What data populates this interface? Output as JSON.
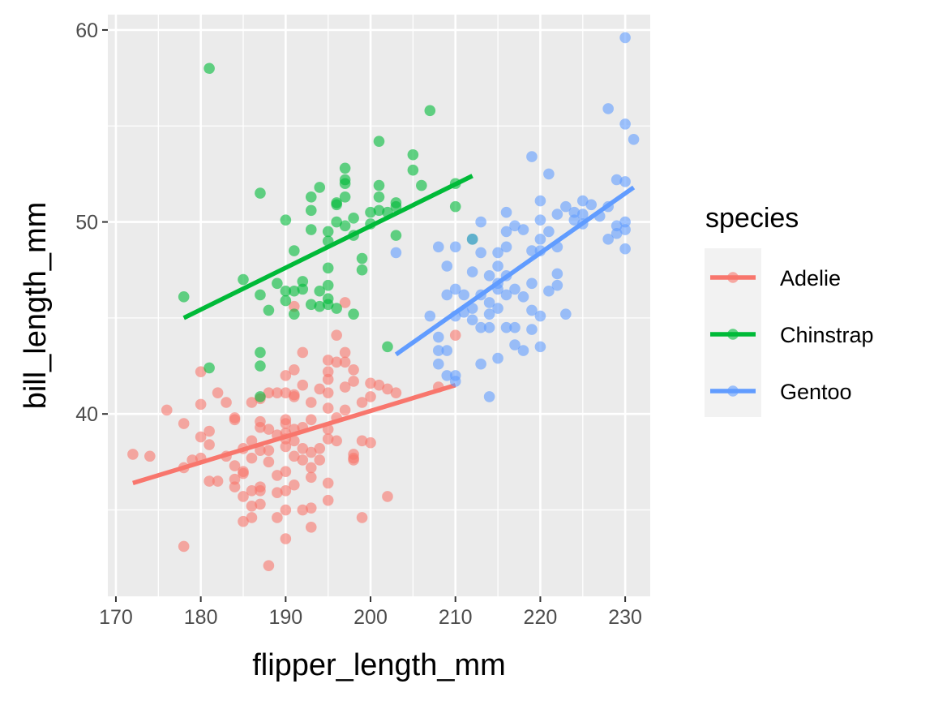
{
  "chart_data": {
    "type": "scatter",
    "xlabel": "flipper_length_mm",
    "ylabel": "bill_length_mm",
    "xlim": [
      169.05,
      232.95
    ],
    "ylim": [
      30.5,
      60.8
    ],
    "x_ticks": [
      170,
      180,
      190,
      200,
      210,
      220,
      230
    ],
    "y_ticks": [
      40,
      50,
      60
    ],
    "legend_title": "species",
    "legend_position": "right",
    "grid": true,
    "series": [
      {
        "name": "Adelie",
        "color": "#F8766D",
        "trend": {
          "x": [
            172,
            210
          ],
          "y": [
            36.4,
            41.5
          ]
        },
        "points": [
          [
            172,
            37.9
          ],
          [
            174,
            37.8
          ],
          [
            176,
            40.2
          ],
          [
            178,
            39.5
          ],
          [
            178,
            37.2
          ],
          [
            178,
            33.1
          ],
          [
            179,
            37.6
          ],
          [
            180,
            42.2
          ],
          [
            180,
            40.5
          ],
          [
            180,
            38.8
          ],
          [
            180,
            37.7
          ],
          [
            181,
            36.5
          ],
          [
            181,
            39.1
          ],
          [
            181,
            38.4
          ],
          [
            182,
            41.1
          ],
          [
            182,
            36.5
          ],
          [
            183,
            40.6
          ],
          [
            183,
            37.8
          ],
          [
            184,
            39.8
          ],
          [
            184,
            39.7
          ],
          [
            184,
            36.6
          ],
          [
            184,
            36.2
          ],
          [
            184,
            37.3
          ],
          [
            185,
            38.2
          ],
          [
            185,
            35.7
          ],
          [
            185,
            34.4
          ],
          [
            185,
            36.9
          ],
          [
            185,
            37.0
          ],
          [
            186,
            40.6
          ],
          [
            186,
            38.6
          ],
          [
            186,
            36.0
          ],
          [
            186,
            35.2
          ],
          [
            186,
            37.7
          ],
          [
            186,
            34.6
          ],
          [
            187,
            39.6
          ],
          [
            187,
            38.1
          ],
          [
            187,
            36.0
          ],
          [
            187,
            35.3
          ],
          [
            187,
            36.2
          ],
          [
            187,
            39.3
          ],
          [
            187,
            40.8
          ],
          [
            188,
            41.1
          ],
          [
            188,
            37.5
          ],
          [
            188,
            38.1
          ],
          [
            188,
            39.2
          ],
          [
            188,
            32.1
          ],
          [
            189,
            41.1
          ],
          [
            189,
            38.9
          ],
          [
            189,
            35.9
          ],
          [
            189,
            34.6
          ],
          [
            189,
            36.8
          ],
          [
            190,
            42.0
          ],
          [
            190,
            39.7
          ],
          [
            190,
            39.0
          ],
          [
            190,
            38.3
          ],
          [
            190,
            38.7
          ],
          [
            190,
            36.0
          ],
          [
            190,
            35.0
          ],
          [
            190,
            37.0
          ],
          [
            190,
            33.5
          ],
          [
            190,
            41.1
          ],
          [
            190,
            39.5
          ],
          [
            191,
            41.0
          ],
          [
            191,
            39.2
          ],
          [
            191,
            38.6
          ],
          [
            191,
            37.8
          ],
          [
            191,
            36.3
          ],
          [
            191,
            45.6
          ],
          [
            191,
            42.3
          ],
          [
            191,
            40.9
          ],
          [
            192,
            43.2
          ],
          [
            192,
            39.3
          ],
          [
            192,
            38.2
          ],
          [
            192,
            35.0
          ],
          [
            192,
            37.6
          ],
          [
            192,
            41.5
          ],
          [
            193,
            39.7
          ],
          [
            193,
            38.0
          ],
          [
            193,
            36.7
          ],
          [
            193,
            35.1
          ],
          [
            193,
            34.1
          ],
          [
            193,
            40.6
          ],
          [
            193,
            37.2
          ],
          [
            194,
            41.3
          ],
          [
            194,
            38.2
          ],
          [
            194,
            37.6
          ],
          [
            195,
            42.8
          ],
          [
            195,
            41.8
          ],
          [
            195,
            40.3
          ],
          [
            195,
            38.7
          ],
          [
            195,
            36.4
          ],
          [
            195,
            35.5
          ],
          [
            195,
            39.2
          ],
          [
            195,
            42.2
          ],
          [
            195,
            41.1
          ],
          [
            196,
            42.7
          ],
          [
            196,
            39.8
          ],
          [
            196,
            38.6
          ],
          [
            196,
            44.1
          ],
          [
            197,
            42.7
          ],
          [
            197,
            40.2
          ],
          [
            197,
            45.8
          ],
          [
            197,
            43.2
          ],
          [
            197,
            41.4
          ],
          [
            198,
            41.7
          ],
          [
            198,
            37.7
          ],
          [
            198,
            37.9
          ],
          [
            198,
            42.3
          ],
          [
            198,
            37.6
          ],
          [
            199,
            40.6
          ],
          [
            199,
            38.6
          ],
          [
            199,
            34.6
          ],
          [
            200,
            41.6
          ],
          [
            200,
            38.5
          ],
          [
            200,
            40.9
          ],
          [
            201,
            41.5
          ],
          [
            202,
            41.3
          ],
          [
            202,
            35.7
          ],
          [
            203,
            41.1
          ],
          [
            208,
            41.4
          ],
          [
            210,
            44.1
          ]
        ]
      },
      {
        "name": "Chinstrap",
        "color": "#00BA38",
        "trend": {
          "x": [
            178,
            212
          ],
          "y": [
            45.0,
            52.4
          ]
        },
        "points": [
          [
            178,
            46.1
          ],
          [
            181,
            58.0
          ],
          [
            181,
            42.4
          ],
          [
            185,
            47.0
          ],
          [
            187,
            51.5
          ],
          [
            187,
            46.2
          ],
          [
            187,
            43.2
          ],
          [
            187,
            42.5
          ],
          [
            187,
            40.9
          ],
          [
            188,
            45.4
          ],
          [
            189,
            46.8
          ],
          [
            190,
            50.1
          ],
          [
            190,
            46.4
          ],
          [
            190,
            45.9
          ],
          [
            191,
            48.5
          ],
          [
            191,
            46.4
          ],
          [
            191,
            45.2
          ],
          [
            192,
            46.9
          ],
          [
            192,
            46.5
          ],
          [
            193,
            51.3
          ],
          [
            193,
            50.6
          ],
          [
            193,
            49.6
          ],
          [
            193,
            45.7
          ],
          [
            194,
            51.8
          ],
          [
            194,
            46.4
          ],
          [
            194,
            45.6
          ],
          [
            195,
            49.5
          ],
          [
            195,
            49.0
          ],
          [
            195,
            47.6
          ],
          [
            195,
            46.7
          ],
          [
            195,
            46.0
          ],
          [
            195,
            45.7
          ],
          [
            196,
            51.0
          ],
          [
            196,
            50.9
          ],
          [
            196,
            50.0
          ],
          [
            196,
            45.5
          ],
          [
            197,
            52.8
          ],
          [
            197,
            52.2
          ],
          [
            197,
            52.0
          ],
          [
            197,
            51.3
          ],
          [
            197,
            49.8
          ],
          [
            198,
            50.2
          ],
          [
            198,
            49.3
          ],
          [
            198,
            45.2
          ],
          [
            199,
            48.1
          ],
          [
            199,
            47.5
          ],
          [
            200,
            50.5
          ],
          [
            200,
            49.9
          ],
          [
            201,
            54.2
          ],
          [
            201,
            51.9
          ],
          [
            201,
            51.3
          ],
          [
            201,
            50.6
          ],
          [
            202,
            43.5
          ],
          [
            202,
            50.5
          ],
          [
            203,
            51.0
          ],
          [
            203,
            50.8
          ],
          [
            203,
            49.3
          ],
          [
            205,
            53.5
          ],
          [
            205,
            52.7
          ],
          [
            206,
            51.9
          ],
          [
            207,
            55.8
          ],
          [
            210,
            50.8
          ],
          [
            210,
            52.0
          ],
          [
            212,
            49.1
          ]
        ]
      },
      {
        "name": "Gentoo",
        "color": "#619CFF",
        "trend": {
          "x": [
            203,
            231
          ],
          "y": [
            43.1,
            51.8
          ]
        },
        "points": [
          [
            203,
            48.4
          ],
          [
            207,
            45.1
          ],
          [
            208,
            48.7
          ],
          [
            208,
            44.0
          ],
          [
            208,
            43.3
          ],
          [
            208,
            42.6
          ],
          [
            209,
            47.7
          ],
          [
            209,
            46.2
          ],
          [
            209,
            43.3
          ],
          [
            209,
            42.0
          ],
          [
            210,
            48.7
          ],
          [
            210,
            46.5
          ],
          [
            210,
            45.1
          ],
          [
            210,
            42.0
          ],
          [
            210,
            41.7
          ],
          [
            211,
            45.3
          ],
          [
            211,
            46.2
          ],
          [
            212,
            49.1
          ],
          [
            212,
            47.4
          ],
          [
            212,
            45.5
          ],
          [
            212,
            44.9
          ],
          [
            213,
            50.0
          ],
          [
            213,
            48.4
          ],
          [
            213,
            46.2
          ],
          [
            213,
            44.5
          ],
          [
            213,
            42.6
          ],
          [
            214,
            47.2
          ],
          [
            214,
            45.8
          ],
          [
            214,
            45.2
          ],
          [
            214,
            44.5
          ],
          [
            214,
            40.9
          ],
          [
            215,
            48.4
          ],
          [
            215,
            47.7
          ],
          [
            215,
            46.8
          ],
          [
            215,
            46.5
          ],
          [
            215,
            45.5
          ],
          [
            215,
            42.9
          ],
          [
            216,
            50.5
          ],
          [
            216,
            49.5
          ],
          [
            216,
            48.7
          ],
          [
            216,
            47.2
          ],
          [
            216,
            46.2
          ],
          [
            216,
            44.5
          ],
          [
            217,
            49.8
          ],
          [
            217,
            46.5
          ],
          [
            217,
            43.6
          ],
          [
            217,
            44.5
          ],
          [
            218,
            49.6
          ],
          [
            218,
            46.1
          ],
          [
            218,
            43.3
          ],
          [
            219,
            53.4
          ],
          [
            219,
            48.5
          ],
          [
            219,
            46.8
          ],
          [
            219,
            45.4
          ],
          [
            219,
            44.4
          ],
          [
            220,
            51.1
          ],
          [
            220,
            50.1
          ],
          [
            220,
            49.1
          ],
          [
            220,
            48.5
          ],
          [
            220,
            45.1
          ],
          [
            220,
            43.5
          ],
          [
            221,
            52.5
          ],
          [
            221,
            49.5
          ],
          [
            221,
            46.4
          ],
          [
            222,
            50.4
          ],
          [
            222,
            48.7
          ],
          [
            222,
            47.3
          ],
          [
            222,
            46.7
          ],
          [
            223,
            50.8
          ],
          [
            223,
            45.2
          ],
          [
            224,
            50.1
          ],
          [
            224,
            50.5
          ],
          [
            225,
            51.1
          ],
          [
            225,
            50.4
          ],
          [
            225,
            49.9
          ],
          [
            226,
            50.9
          ],
          [
            227,
            50.3
          ],
          [
            228,
            55.9
          ],
          [
            228,
            50.8
          ],
          [
            228,
            49.1
          ],
          [
            229,
            52.2
          ],
          [
            229,
            49.8
          ],
          [
            229,
            49.4
          ],
          [
            230,
            59.6
          ],
          [
            230,
            55.1
          ],
          [
            230,
            52.1
          ],
          [
            230,
            50.0
          ],
          [
            230,
            49.6
          ],
          [
            230,
            48.6
          ],
          [
            231,
            54.3
          ]
        ]
      }
    ]
  }
}
